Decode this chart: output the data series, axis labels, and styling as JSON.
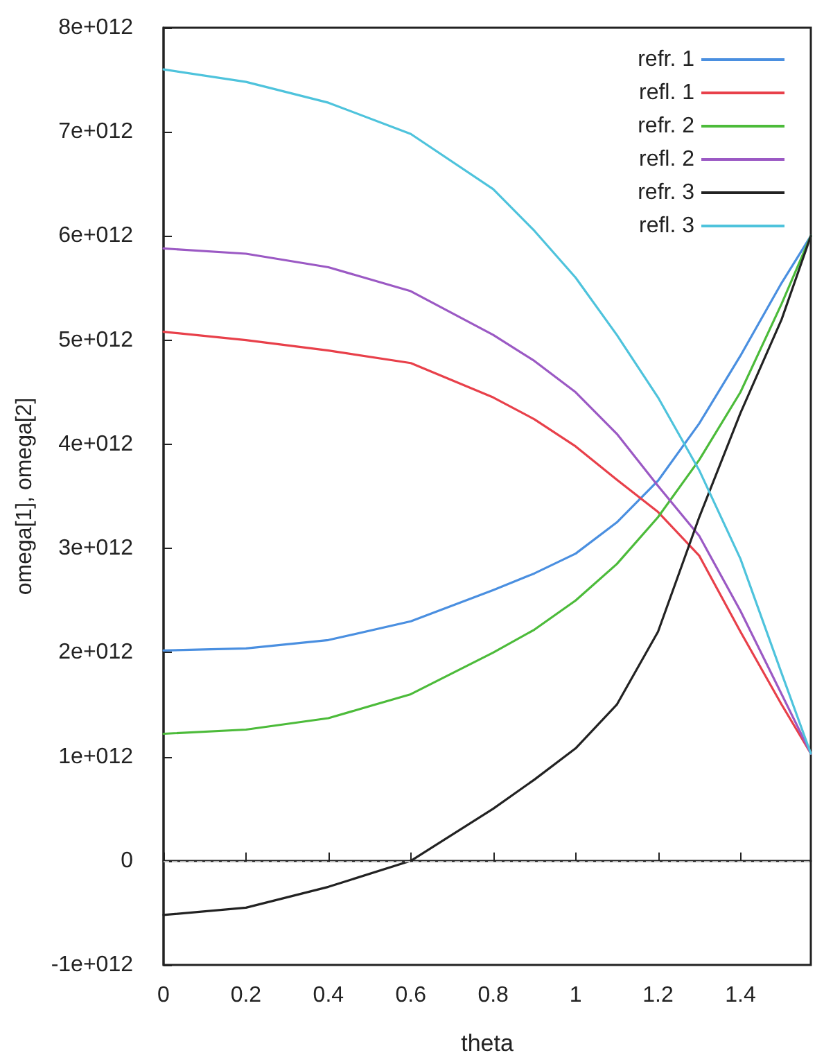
{
  "chart_data": {
    "type": "line",
    "xlabel": "theta",
    "ylabel": "omega[1], omega[2]",
    "x": [
      0,
      0.2,
      0.4,
      0.6,
      0.8,
      0.9,
      1.0,
      1.1,
      1.2,
      1.3,
      1.4,
      1.5,
      1.5708
    ],
    "series": [
      {
        "name": "refr. 1",
        "color": "#4a8fe0",
        "values": [
          2020000000000.0,
          2040000000000.0,
          2120000000000.0,
          2300000000000.0,
          2600000000000.0,
          2760000000000.0,
          2950000000000.0,
          3250000000000.0,
          3650000000000.0,
          4200000000000.0,
          4850000000000.0,
          5550000000000.0,
          6000000000000.0
        ]
      },
      {
        "name": "refl. 1",
        "color": "#e8404a",
        "values": [
          5080000000000.0,
          5000000000000.0,
          4900000000000.0,
          4780000000000.0,
          4450000000000.0,
          4240000000000.0,
          3980000000000.0,
          3660000000000.0,
          3350000000000.0,
          2930000000000.0,
          2200000000000.0,
          1500000000000.0,
          1030000000000.0
        ]
      },
      {
        "name": "refr. 2",
        "color": "#4cbb3a",
        "values": [
          1220000000000.0,
          1260000000000.0,
          1370000000000.0,
          1600000000000.0,
          2000000000000.0,
          2220000000000.0,
          2500000000000.0,
          2850000000000.0,
          3300000000000.0,
          3850000000000.0,
          4500000000000.0,
          5350000000000.0,
          6000000000000.0
        ]
      },
      {
        "name": "refl. 2",
        "color": "#9b59c4",
        "values": [
          5880000000000.0,
          5830000000000.0,
          5700000000000.0,
          5470000000000.0,
          5050000000000.0,
          4800000000000.0,
          4500000000000.0,
          4100000000000.0,
          3600000000000.0,
          3120000000000.0,
          2400000000000.0,
          1600000000000.0,
          1030000000000.0
        ]
      },
      {
        "name": "refr. 3",
        "color": "#222222",
        "values": [
          -520000000000.0,
          -450000000000.0,
          -250000000000.0,
          0.0,
          500000000000.0,
          780000000000.0,
          1080000000000.0,
          1500000000000.0,
          2200000000000.0,
          3300000000000.0,
          4300000000000.0,
          5200000000000.0,
          6000000000000.0
        ]
      },
      {
        "name": "refl. 3",
        "color": "#4ec3dc",
        "values": [
          7600000000000.0,
          7480000000000.0,
          7280000000000.0,
          6980000000000.0,
          6450000000000.0,
          6050000000000.0,
          5600000000000.0,
          5050000000000.0,
          4450000000000.0,
          3750000000000.0,
          2900000000000.0,
          1800000000000.0,
          1030000000000.0
        ]
      }
    ],
    "xlim": [
      0,
      1.5708
    ],
    "xticks": [
      0,
      0.2,
      0.4,
      0.6,
      0.8,
      1,
      1.2,
      1.4
    ],
    "ylim": [
      -1000000000000.0,
      8000000000000.0
    ],
    "yticks": [
      {
        "value": -1000000000000.0,
        "label": "-1e+012"
      },
      {
        "value": 0,
        "label": "0"
      },
      {
        "value": 1000000000000.0,
        "label": "1e+012"
      },
      {
        "value": 2000000000000.0,
        "label": "2e+012"
      },
      {
        "value": 3000000000000.0,
        "label": "3e+012"
      },
      {
        "value": 4000000000000.0,
        "label": "4e+012"
      },
      {
        "value": 5000000000000.0,
        "label": "5e+012"
      },
      {
        "value": 6000000000000.0,
        "label": "6e+012"
      },
      {
        "value": 7000000000000.0,
        "label": "7e+012"
      },
      {
        "value": 8000000000000.0,
        "label": "8e+012"
      }
    ],
    "ref_lines": [
      {
        "axis": "y",
        "value": 0,
        "color": "#bbbbbb",
        "line_style": "dashed"
      }
    ],
    "legend": "top right",
    "grid": false
  }
}
